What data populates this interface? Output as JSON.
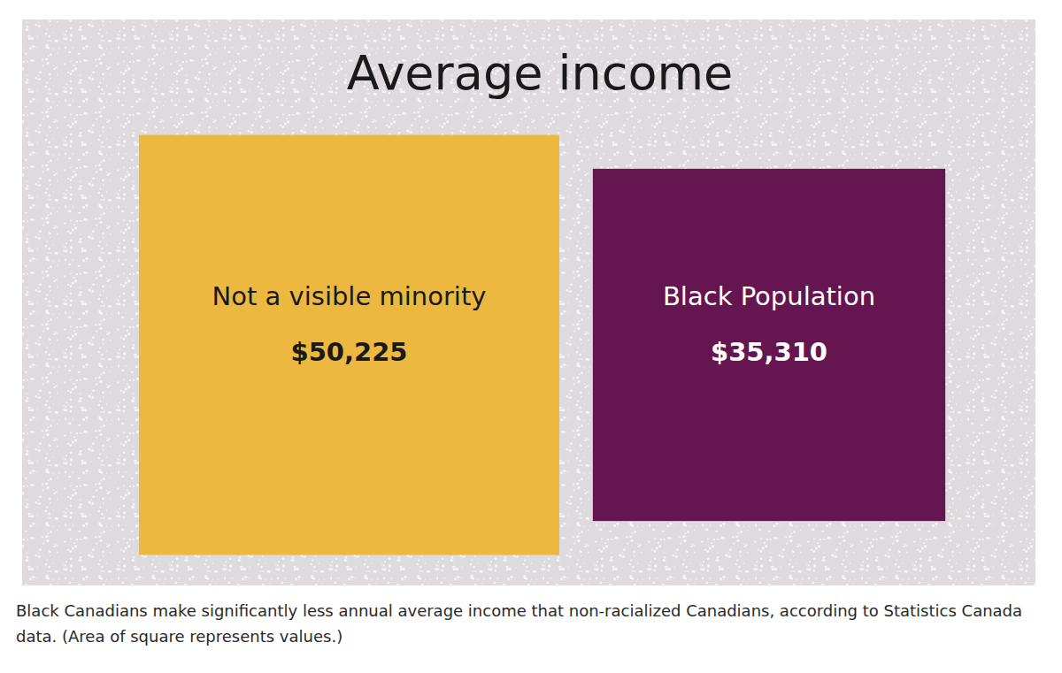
{
  "chart_data": {
    "type": "square",
    "title": "Average income",
    "categories": [
      "Not a visible minority",
      "Black Population"
    ],
    "values": [
      50225,
      35310
    ],
    "value_labels": [
      "$50,225",
      "$35,310"
    ],
    "colors": [
      "#ecb840",
      "#65154f"
    ],
    "data_labels": true,
    "caption": "Black Canadians make significantly less annual average income that non-racialized Canadians, according to Statistics Canada data. (Area of square represents values.)"
  }
}
